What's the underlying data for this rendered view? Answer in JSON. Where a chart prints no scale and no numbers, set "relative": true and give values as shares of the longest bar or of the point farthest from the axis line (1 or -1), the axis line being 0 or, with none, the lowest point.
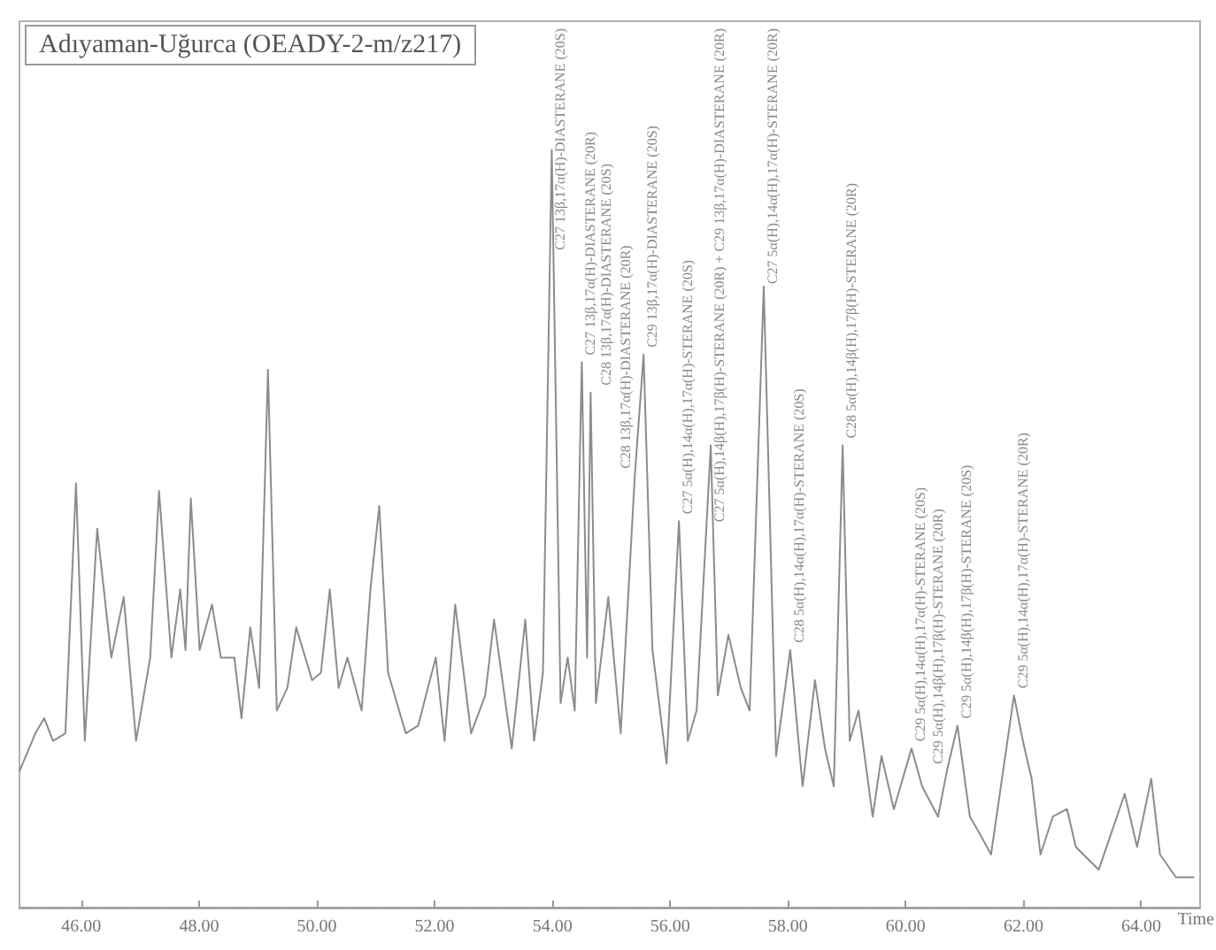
{
  "chart_data": {
    "type": "line",
    "title": "Adıyaman-Uğurca (OEADY-2-m/z217)",
    "xlabel": "Time",
    "relative": true,
    "color": "#8c8c8c",
    "marker": "none",
    "line_style": "solid",
    "grid": false,
    "xlim": [
      44.95,
      65.0
    ],
    "xticks": [
      {
        "value": 46,
        "label": "46.00"
      },
      {
        "value": 48,
        "label": "48.00"
      },
      {
        "value": 50,
        "label": "50.00"
      },
      {
        "value": 52,
        "label": "52.00"
      },
      {
        "value": 54,
        "label": "54.00"
      },
      {
        "value": 56,
        "label": "56.00"
      },
      {
        "value": 58,
        "label": "58.00"
      },
      {
        "value": 60,
        "label": "60.00"
      },
      {
        "value": 62,
        "label": "62.00"
      },
      {
        "value": 64,
        "label": "64.00"
      }
    ],
    "x": [
      44.95,
      45.22,
      45.37,
      45.52,
      45.73,
      45.91,
      46.06,
      46.27,
      46.51,
      46.72,
      46.93,
      47.17,
      47.32,
      47.53,
      47.68,
      47.77,
      47.86,
      48.01,
      48.22,
      48.37,
      48.6,
      48.72,
      48.87,
      49.02,
      49.17,
      49.32,
      49.5,
      49.65,
      49.92,
      50.07,
      50.22,
      50.37,
      50.52,
      50.76,
      50.91,
      51.06,
      51.21,
      51.51,
      51.72,
      52.02,
      52.17,
      52.35,
      52.62,
      52.86,
      53.01,
      53.31,
      53.54,
      53.69,
      53.84,
      53.99,
      54.14,
      54.26,
      54.38,
      54.5,
      54.59,
      54.65,
      54.74,
      54.95,
      55.16,
      55.4,
      55.55,
      55.7,
      55.94,
      56.15,
      56.3,
      56.45,
      56.69,
      56.81,
      56.99,
      57.2,
      57.35,
      57.59,
      57.8,
      58.04,
      58.25,
      58.46,
      58.63,
      58.78,
      58.93,
      59.05,
      59.2,
      59.44,
      59.59,
      59.8,
      60.1,
      60.28,
      60.55,
      60.7,
      60.88,
      61.09,
      61.24,
      61.45,
      61.84,
      61.99,
      62.14,
      62.29,
      62.5,
      62.74,
      62.89,
      63.28,
      63.72,
      63.93,
      64.17,
      64.32,
      64.59,
      64.89
    ],
    "values": [
      0.18,
      0.23,
      0.25,
      0.22,
      0.23,
      0.56,
      0.22,
      0.5,
      0.33,
      0.41,
      0.22,
      0.33,
      0.55,
      0.33,
      0.42,
      0.34,
      0.54,
      0.34,
      0.4,
      0.33,
      0.33,
      0.25,
      0.37,
      0.29,
      0.71,
      0.26,
      0.29,
      0.37,
      0.3,
      0.31,
      0.42,
      0.29,
      0.33,
      0.26,
      0.42,
      0.53,
      0.31,
      0.23,
      0.24,
      0.33,
      0.22,
      0.4,
      0.23,
      0.28,
      0.38,
      0.21,
      0.38,
      0.22,
      0.31,
      1,
      0.27,
      0.33,
      0.26,
      0.72,
      0.33,
      0.68,
      0.27,
      0.41,
      0.23,
      0.57,
      0.73,
      0.34,
      0.19,
      0.51,
      0.22,
      0.26,
      0.61,
      0.28,
      0.36,
      0.29,
      0.26,
      0.82,
      0.2,
      0.34,
      0.16,
      0.3,
      0.21,
      0.16,
      0.61,
      0.22,
      0.26,
      0.12,
      0.2,
      0.13,
      0.21,
      0.16,
      0.12,
      0.18,
      0.24,
      0.12,
      0.1,
      0.07,
      0.28,
      0.22,
      0.17,
      0.07,
      0.12,
      0.13,
      0.08,
      0.05,
      0.15,
      0.08,
      0.17,
      0.07,
      0.04,
      0.04
    ],
    "annotations": [
      {
        "text": "C27 13β,17α(H)-DIASTERANE (20S)",
        "x": 53.99,
        "y": 1
      },
      {
        "text": "C27 13β,17α(H)-DIASTERANE (20R)",
        "x": 54.5,
        "y": 0.72
      },
      {
        "text": "C28 13β,17α(H)-DIASTERANE (20S)",
        "x": 54.65,
        "y": 0.68
      },
      {
        "text": "C28 13β,17α(H)-DIASTERANE (20R)",
        "x": 55.4,
        "y": 0.57
      },
      {
        "text": "C29 13β,17α(H)-DIASTERANE (20S)",
        "x": 55.55,
        "y": 0.73
      },
      {
        "text": "C27 5α(H),14α(H),17α(H)-STERANE (20S)",
        "x": 56.15,
        "y": 0.51
      },
      {
        "text": "C27 5α(H),14β(H),17β(H)-STERANE (20R) + C29 13β,17α(H)-DIASTERANE (20R)",
        "x": 56.69,
        "y": 0.61
      },
      {
        "text": "C27 5α(H),14α(H),17α(H)-STERANE (20R)",
        "x": 57.59,
        "y": 0.82
      },
      {
        "text": "C28 5α(H),14α(H),17α(H)-STERANE (20S)",
        "x": 58.04,
        "y": 0.34
      },
      {
        "text": "C28 5α(H),14β(H),17β(H)-STERANE (20R)",
        "x": 58.93,
        "y": 0.61
      },
      {
        "text": "C29 5α(H),14α(H),17α(H)-STERANE (20S)",
        "x": 60.1,
        "y": 0.21
      },
      {
        "text": "C29 5α(H),14β(H),17β(H)-STERANE (20R)",
        "x": 60.7,
        "y": 0.18
      },
      {
        "text": "C29 5α(H),14β(H),17β(H)-STERANE (20S)",
        "x": 60.88,
        "y": 0.24
      },
      {
        "text": "C29 5α(H),14α(H),17α(H)-STERANE (20R)",
        "x": 61.84,
        "y": 0.28
      }
    ]
  }
}
